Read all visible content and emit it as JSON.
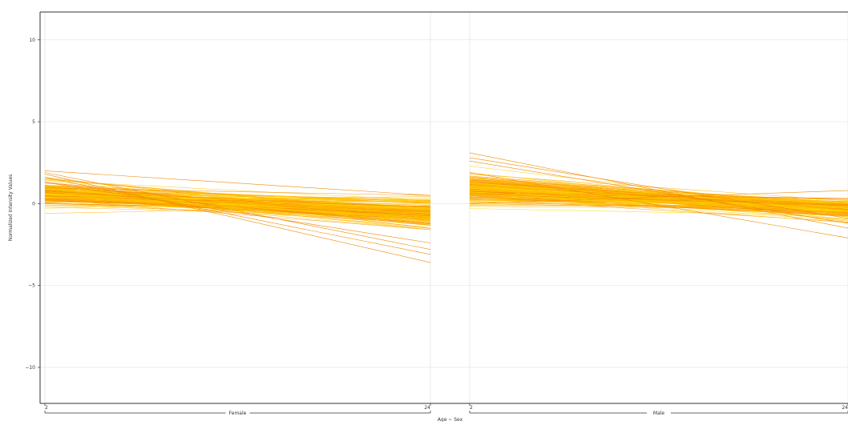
{
  "chart_data": {
    "type": "line",
    "ylabel": "Normalized Intensity Values",
    "xlabel": "Age ~ Sex",
    "ylim": [
      -12.2,
      11.7
    ],
    "yticks": [
      10,
      5,
      0,
      -5,
      -10
    ],
    "grid": true,
    "legend": "none",
    "line_colors": [
      "#ffd700",
      "#ffc400",
      "#ffb000",
      "#ff9a00",
      "#f08a00"
    ],
    "facets": [
      {
        "name": "Female",
        "x_ticks": [
          "2",
          "24"
        ],
        "series_summary": {
          "count": 180,
          "start_mean": 0.6,
          "start_min": -0.6,
          "start_max": 2.0,
          "end_mean": -0.6,
          "end_min": -3.6,
          "end_max": 0.5
        }
      },
      {
        "name": "Male",
        "x_ticks": [
          "2",
          "24"
        ],
        "series_summary": {
          "count": 180,
          "start_mean": 0.8,
          "start_min": -0.3,
          "start_max": 3.1,
          "end_mean": -0.3,
          "end_min": -2.1,
          "end_max": 0.8
        }
      }
    ]
  }
}
